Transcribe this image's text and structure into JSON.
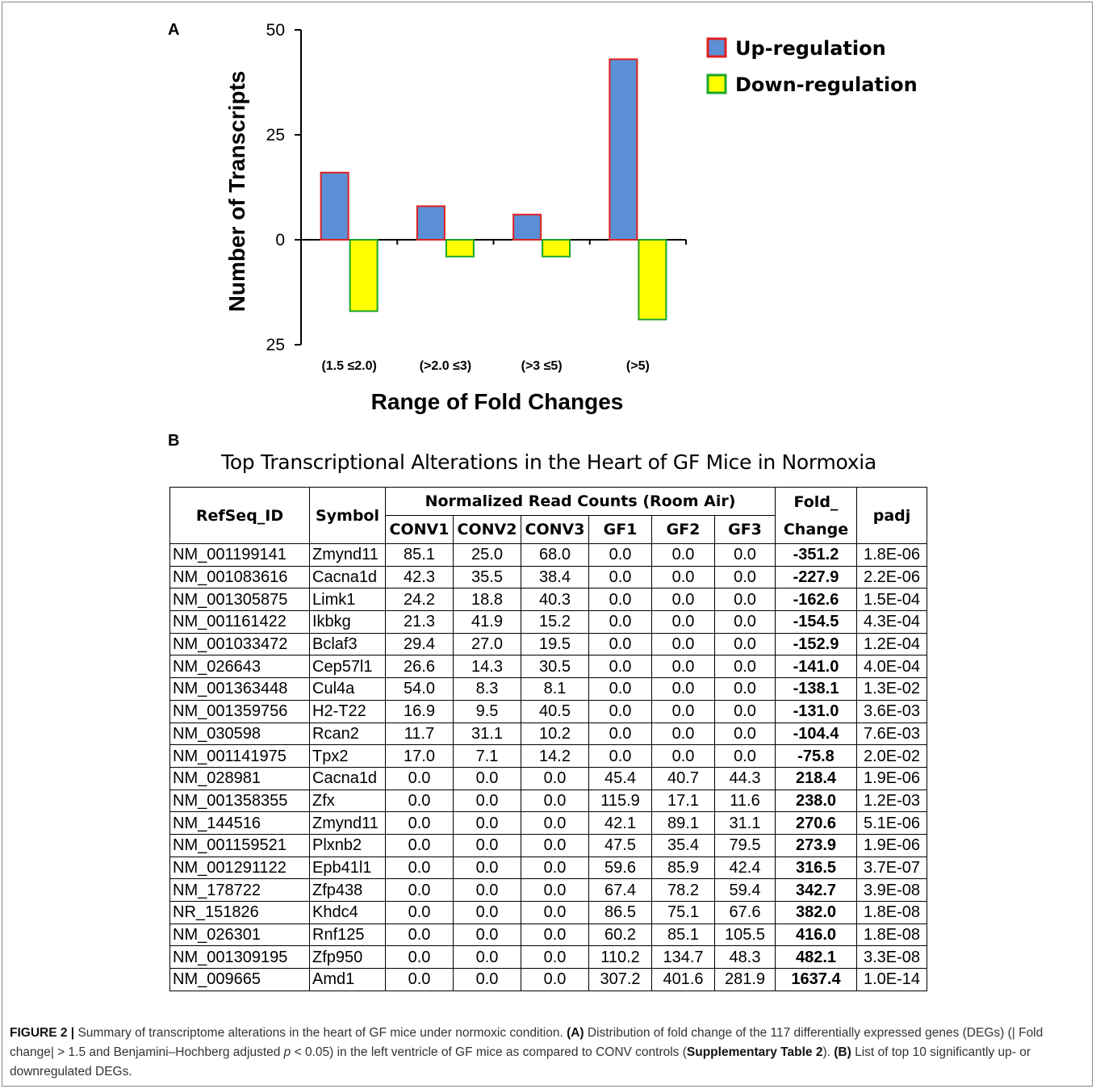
{
  "panel_a_label": "A",
  "panel_b_label": "B",
  "chart_data": {
    "type": "bar",
    "categories": [
      "(1.5 ≤2.0)",
      "(>2.0 ≤3)",
      "(>3 ≤5)",
      "(>5)"
    ],
    "series": [
      {
        "name": "Up-regulation",
        "values": [
          16,
          8,
          6,
          43
        ],
        "fill": "#5b8fd6",
        "stroke": "#e02020"
      },
      {
        "name": "Down-regulation",
        "values": [
          -17,
          -4,
          -4,
          -19
        ],
        "fill": "#ffff00",
        "stroke": "#1aa52c"
      }
    ],
    "ylabel": "Number of Transcripts",
    "xlabel": "Range of Fold Changes",
    "ylim": [
      -25,
      50
    ],
    "ytick_values": [
      50,
      25,
      0,
      -25
    ],
    "ytick_labels": [
      "50",
      "25",
      "0",
      "25"
    ],
    "legend_position": "top-right",
    "grid": false
  },
  "table_title": "Top Transcriptional Alterations in the Heart of GF Mice in Normoxia",
  "table": {
    "headers": {
      "refseq": "RefSeq_ID",
      "symbol": "Symbol",
      "group": "Normalized Read Counts (Room Air)",
      "fold_line1": "Fold_",
      "fold_line2": "Change",
      "padj": "padj",
      "subcols": [
        "CONV1",
        "CONV2",
        "CONV3",
        "GF1",
        "GF2",
        "GF3"
      ]
    },
    "rows": [
      [
        "NM_001199141",
        "Zmynd11",
        "85.1",
        "25.0",
        "68.0",
        "0.0",
        "0.0",
        "0.0",
        "-351.2",
        "1.8E-06"
      ],
      [
        "NM_001083616",
        "Cacna1d",
        "42.3",
        "35.5",
        "38.4",
        "0.0",
        "0.0",
        "0.0",
        "-227.9",
        "2.2E-06"
      ],
      [
        "NM_001305875",
        "Limk1",
        "24.2",
        "18.8",
        "40.3",
        "0.0",
        "0.0",
        "0.0",
        "-162.6",
        "1.5E-04"
      ],
      [
        "NM_001161422",
        "Ikbkg",
        "21.3",
        "41.9",
        "15.2",
        "0.0",
        "0.0",
        "0.0",
        "-154.5",
        "4.3E-04"
      ],
      [
        "NM_001033472",
        "Bclaf3",
        "29.4",
        "27.0",
        "19.5",
        "0.0",
        "0.0",
        "0.0",
        "-152.9",
        "1.2E-04"
      ],
      [
        "NM_026643",
        "Cep57l1",
        "26.6",
        "14.3",
        "30.5",
        "0.0",
        "0.0",
        "0.0",
        "-141.0",
        "4.0E-04"
      ],
      [
        "NM_001363448",
        "Cul4a",
        "54.0",
        "8.3",
        "8.1",
        "0.0",
        "0.0",
        "0.0",
        "-138.1",
        "1.3E-02"
      ],
      [
        "NM_001359756",
        "H2-T22",
        "16.9",
        "9.5",
        "40.5",
        "0.0",
        "0.0",
        "0.0",
        "-131.0",
        "3.6E-03"
      ],
      [
        "NM_030598",
        "Rcan2",
        "11.7",
        "31.1",
        "10.2",
        "0.0",
        "0.0",
        "0.0",
        "-104.4",
        "7.6E-03"
      ],
      [
        "NM_001141975",
        "Tpx2",
        "17.0",
        "7.1",
        "14.2",
        "0.0",
        "0.0",
        "0.0",
        "-75.8",
        "2.0E-02"
      ],
      [
        "NM_028981",
        "Cacna1d",
        "0.0",
        "0.0",
        "0.0",
        "45.4",
        "40.7",
        "44.3",
        "218.4",
        "1.9E-06"
      ],
      [
        "NM_001358355",
        "Zfx",
        "0.0",
        "0.0",
        "0.0",
        "115.9",
        "17.1",
        "11.6",
        "238.0",
        "1.2E-03"
      ],
      [
        "NM_144516",
        "Zmynd11",
        "0.0",
        "0.0",
        "0.0",
        "42.1",
        "89.1",
        "31.1",
        "270.6",
        "5.1E-06"
      ],
      [
        "NM_001159521",
        "Plxnb2",
        "0.0",
        "0.0",
        "0.0",
        "47.5",
        "35.4",
        "79.5",
        "273.9",
        "1.9E-06"
      ],
      [
        "NM_001291122",
        "Epb41l1",
        "0.0",
        "0.0",
        "0.0",
        "59.6",
        "85.9",
        "42.4",
        "316.5",
        "3.7E-07"
      ],
      [
        "NM_178722",
        "Zfp438",
        "0.0",
        "0.0",
        "0.0",
        "67.4",
        "78.2",
        "59.4",
        "342.7",
        "3.9E-08"
      ],
      [
        "NR_151826",
        "Khdc4",
        "0.0",
        "0.0",
        "0.0",
        "86.5",
        "75.1",
        "67.6",
        "382.0",
        "1.8E-08"
      ],
      [
        "NM_026301",
        "Rnf125",
        "0.0",
        "0.0",
        "0.0",
        "60.2",
        "85.1",
        "105.5",
        "416.0",
        "1.8E-08"
      ],
      [
        "NM_001309195",
        "Zfp950",
        "0.0",
        "0.0",
        "0.0",
        "110.2",
        "134.7",
        "48.3",
        "482.1",
        "3.3E-08"
      ],
      [
        "NM_009665",
        "Amd1",
        "0.0",
        "0.0",
        "0.0",
        "307.2",
        "401.6",
        "281.9",
        "1637.4",
        "1.0E-14"
      ]
    ]
  },
  "caption": {
    "figure_label": "FIGURE 2 |",
    "part1": " Summary of transcriptome alterations in the heart of GF mice under normoxic condition. ",
    "a_label": "(A)",
    "part2": " Distribution of fold change of the 117 differentially expressed genes (DEGs) (| Fold change|  > 1.5 and Benjamini–Hochberg adjusted ",
    "p_symbol": "p",
    "part3": " < 0.05) in the left ventricle of GF mice as compared to CONV controls (",
    "supp": "Supplementary Table 2",
    "part4": "). ",
    "b_label": "(B)",
    "part5": " List of top 10 significantly up- or downregulated DEGs."
  }
}
